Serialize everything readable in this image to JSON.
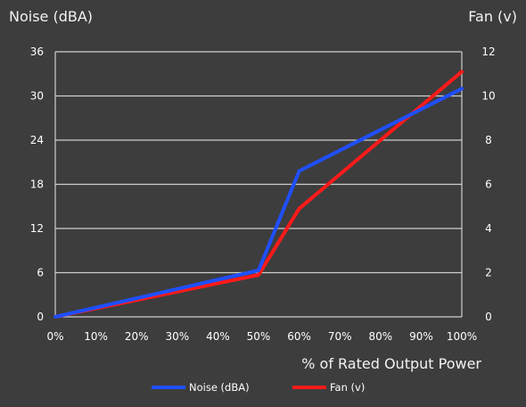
{
  "chart_data": {
    "type": "line",
    "x": [
      "0%",
      "10%",
      "20%",
      "30%",
      "40%",
      "50%",
      "60%",
      "70%",
      "80%",
      "90%",
      "100%"
    ],
    "xlabel": "% of Rated Output Power",
    "left_axis": {
      "label": "Noise (dBA)",
      "ticks": [
        "0",
        "6",
        "12",
        "18",
        "24",
        "30",
        "36"
      ],
      "ylim": [
        0,
        36
      ]
    },
    "right_axis": {
      "label": "Fan (v)",
      "ticks": [
        "0",
        "2",
        "4",
        "6",
        "8",
        "10",
        "12"
      ],
      "ylim": [
        0,
        12
      ]
    },
    "grid": true,
    "legend_position": "bottom",
    "series": [
      {
        "name": "Noise (dBA)",
        "axis": "left",
        "color": "#1f4fff",
        "points": [
          [
            0,
            0
          ],
          [
            50,
            6.3
          ],
          [
            60,
            19.8
          ],
          [
            100,
            31.0
          ]
        ]
      },
      {
        "name": "Fan (v)",
        "axis": "right",
        "color": "#ff1a1a",
        "points": [
          [
            0,
            0
          ],
          [
            50,
            1.9
          ],
          [
            60,
            4.9
          ],
          [
            100,
            11.1
          ]
        ]
      }
    ]
  }
}
